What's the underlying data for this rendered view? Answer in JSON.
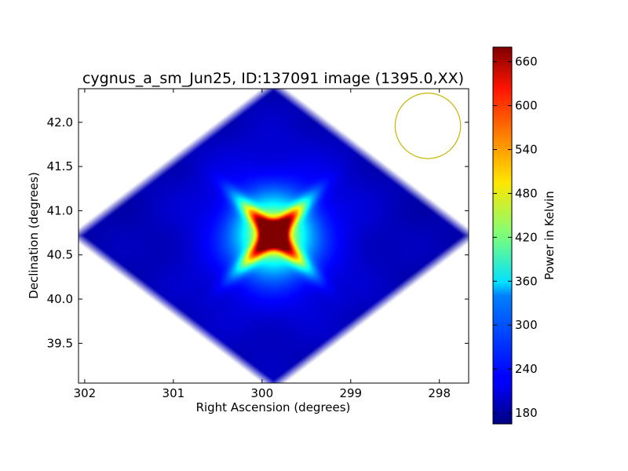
{
  "chart_data": {
    "type": "heatmap",
    "title": "cygnus_a_sm_Jun25, ID:137091 image (1395.0,XX)",
    "xlabel": "Right Ascension (degrees)",
    "ylabel": "Declination (degrees)",
    "colorbar_label": "Power in Kelvin",
    "colormap": "jet",
    "xlim": [
      302.07,
      297.67
    ],
    "ylim": [
      39.05,
      42.38
    ],
    "x_ticks": [
      302,
      301,
      300,
      299,
      298
    ],
    "y_ticks": [
      39.5,
      40.0,
      40.5,
      41.0,
      41.5,
      42.0
    ],
    "color_range": [
      165,
      680
    ],
    "colorbar_ticks": [
      180,
      240,
      300,
      360,
      420,
      480,
      540,
      600,
      660
    ],
    "map_footprint": {
      "center": [
        299.87,
        40.72
      ],
      "ra_half_width": 2.18,
      "dec_half_height": 1.67
    },
    "source_peak": {
      "ra": 299.87,
      "dec": 40.73,
      "value": 680
    },
    "background_level": 190,
    "beam_circle": {
      "ra": 298.13,
      "dec": 41.96,
      "radius_dec": 0.37,
      "color": "#c8b400"
    },
    "grid": false,
    "legend": "none"
  }
}
